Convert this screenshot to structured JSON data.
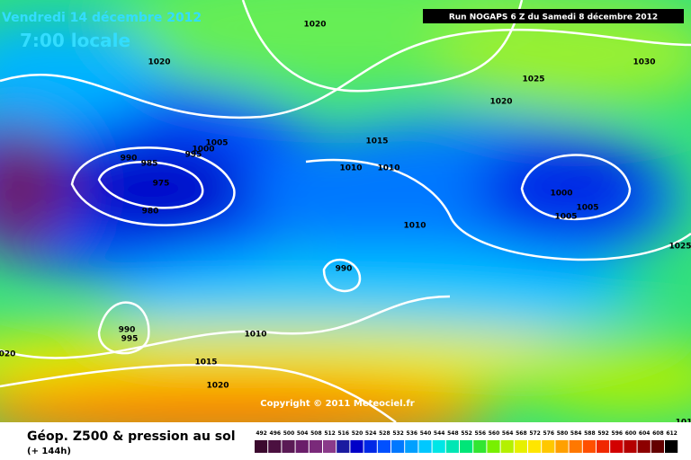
{
  "header": {
    "date": "Vendredi 14 décembre 2012",
    "time": "7:00 locale",
    "run": "Run NOGAPS 6 Z du Samedi 8 décembre 2012"
  },
  "copyright": "Copyright © 2011 Meteociel.fr",
  "footer": {
    "title": "Géop. Z500 & pression au sol",
    "lead": "(+ 144h)"
  },
  "contour_labels": [
    "1020",
    "1020",
    "1030",
    "1025",
    "1020",
    "1005",
    "1015",
    "1000",
    "995",
    "990",
    "985",
    "1010",
    "1010",
    "975",
    "980",
    "1000",
    "1005",
    "1005",
    "1010",
    "1025",
    "990",
    "990",
    "995",
    "1010",
    "020",
    "1015",
    "1020",
    "101"
  ],
  "scale": {
    "values": [
      492,
      496,
      500,
      504,
      508,
      512,
      516,
      520,
      524,
      528,
      532,
      536,
      540,
      544,
      548,
      552,
      556,
      560,
      564,
      568,
      572,
      576,
      580,
      584,
      588,
      592,
      596,
      600,
      604,
      608,
      612
    ],
    "colors": [
      "#3b0a2e",
      "#4b1040",
      "#5a1a55",
      "#6a1e6a",
      "#7a2a7a",
      "#8a3a8a",
      "#1a1aa0",
      "#0000c8",
      "#0028e6",
      "#0050ff",
      "#0078ff",
      "#00a0ff",
      "#00c8ff",
      "#00e6e6",
      "#00e6b4",
      "#00e678",
      "#32e632",
      "#78f000",
      "#b4f000",
      "#e6f000",
      "#ffe600",
      "#ffc800",
      "#ffa000",
      "#ff7800",
      "#ff5000",
      "#f02800",
      "#d20000",
      "#b40000",
      "#8c0000",
      "#640000",
      "#000000"
    ]
  }
}
